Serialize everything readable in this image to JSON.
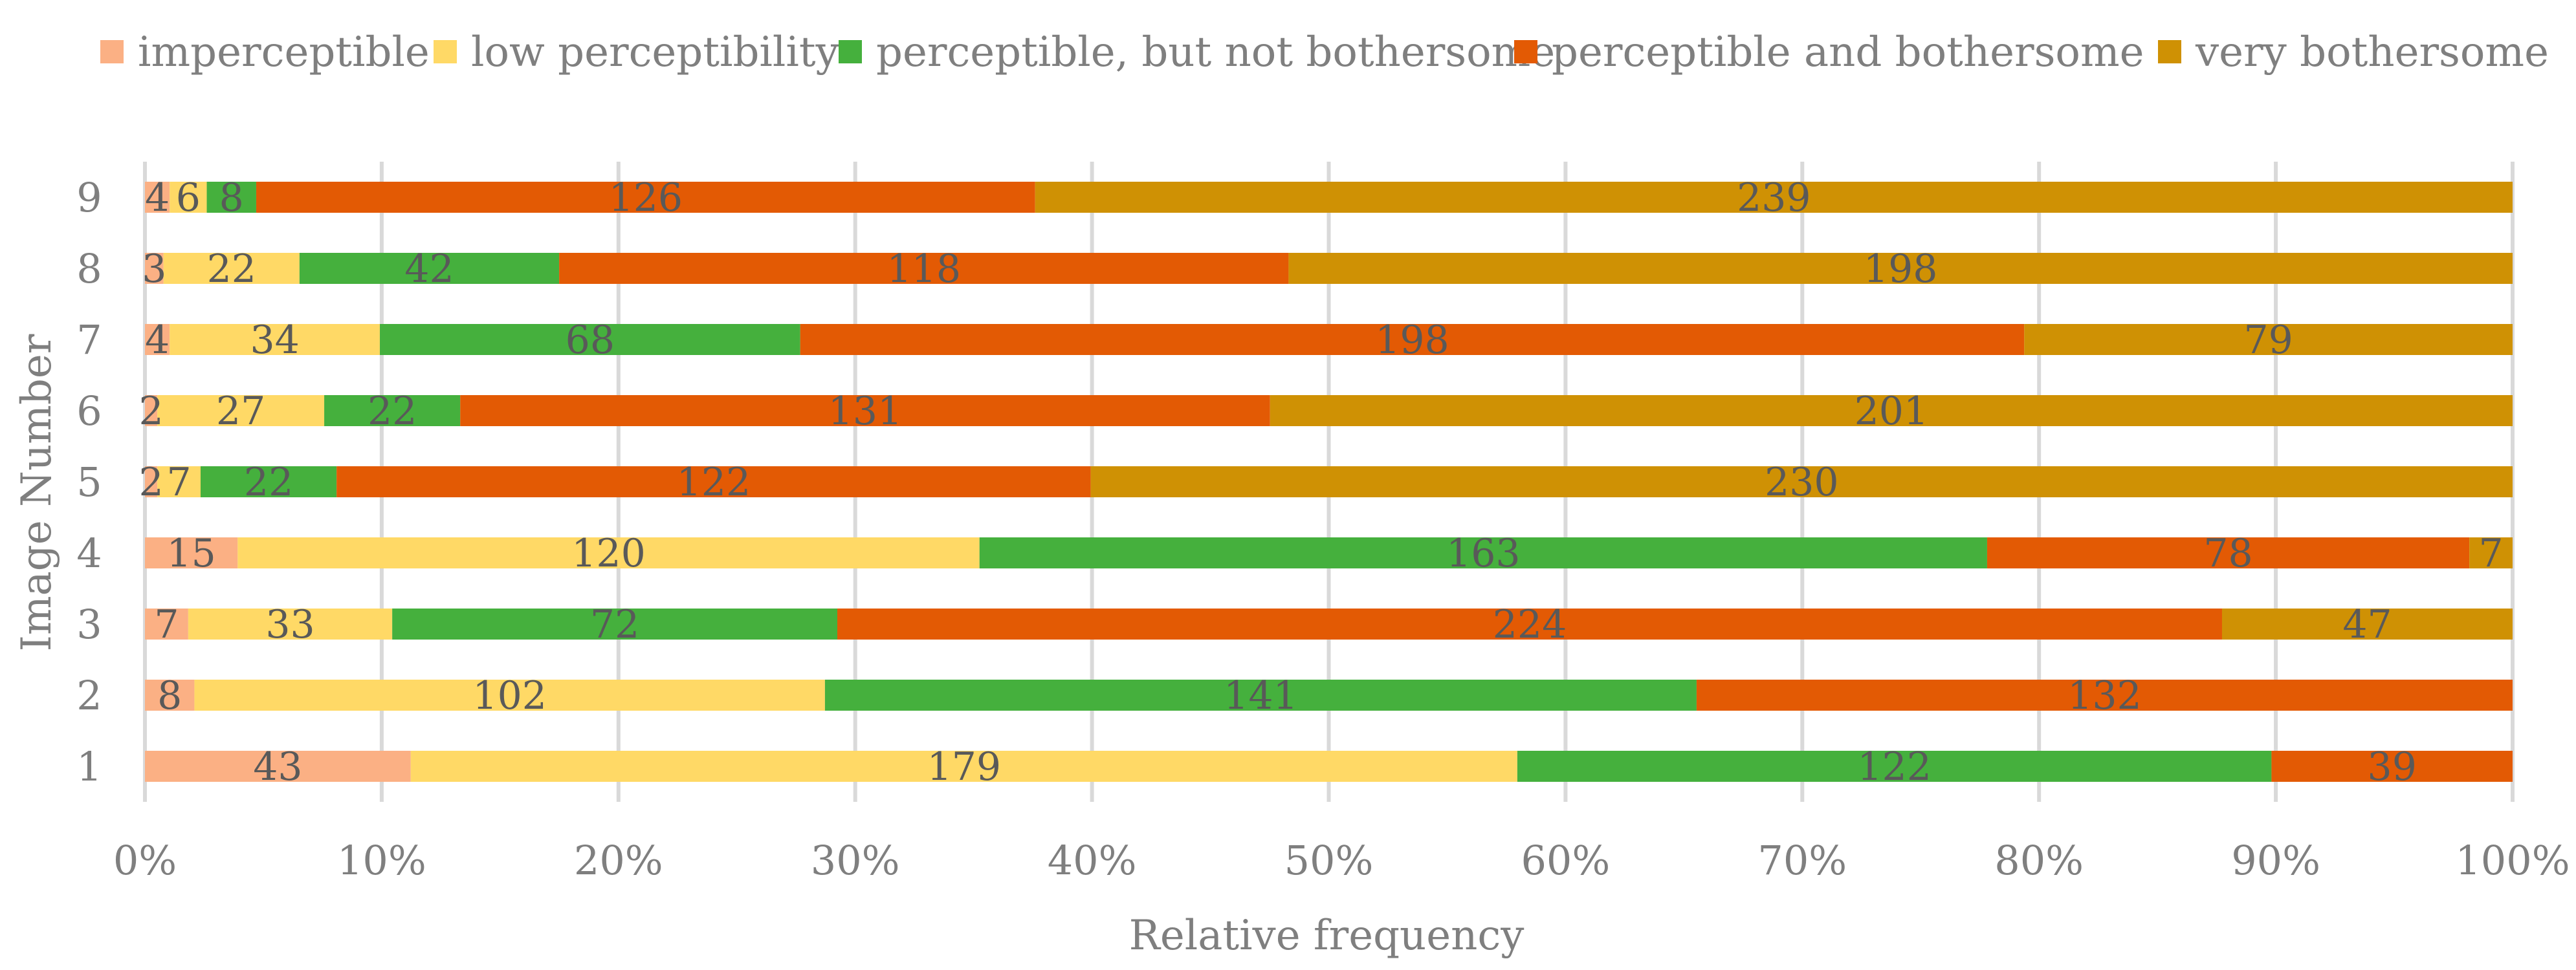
{
  "chart_data": {
    "type": "bar",
    "orientation": "horizontal",
    "stacked": "percent",
    "title": "",
    "xlabel": "Relative frequency",
    "ylabel": "Image Number",
    "categories": [
      "1",
      "2",
      "3",
      "4",
      "5",
      "6",
      "7",
      "8",
      "9"
    ],
    "xlim": [
      0,
      100
    ],
    "xticks": [
      "0%",
      "10%",
      "20%",
      "30%",
      "40%",
      "50%",
      "60%",
      "70%",
      "80%",
      "90%",
      "100%"
    ],
    "grid": true,
    "legend_position": "top",
    "series": [
      {
        "name": "imperceptible",
        "color": "#fbb084",
        "values": [
          43,
          8,
          7,
          15,
          2,
          2,
          4,
          3,
          4
        ]
      },
      {
        "name": "low perceptibility",
        "color": "#ffd966",
        "values": [
          179,
          102,
          33,
          120,
          7,
          27,
          34,
          22,
          6
        ]
      },
      {
        "name": "perceptible, but not bothersome",
        "color": "#45b03d",
        "values": [
          122,
          141,
          72,
          163,
          22,
          22,
          68,
          42,
          8
        ]
      },
      {
        "name": "perceptible and bothersome",
        "color": "#e35a04",
        "values": [
          39,
          132,
          224,
          78,
          122,
          131,
          198,
          118,
          126
        ]
      },
      {
        "name": "very bothersome",
        "color": "#cf9104",
        "values": [
          0,
          0,
          47,
          7,
          230,
          201,
          79,
          198,
          239
        ]
      }
    ]
  }
}
